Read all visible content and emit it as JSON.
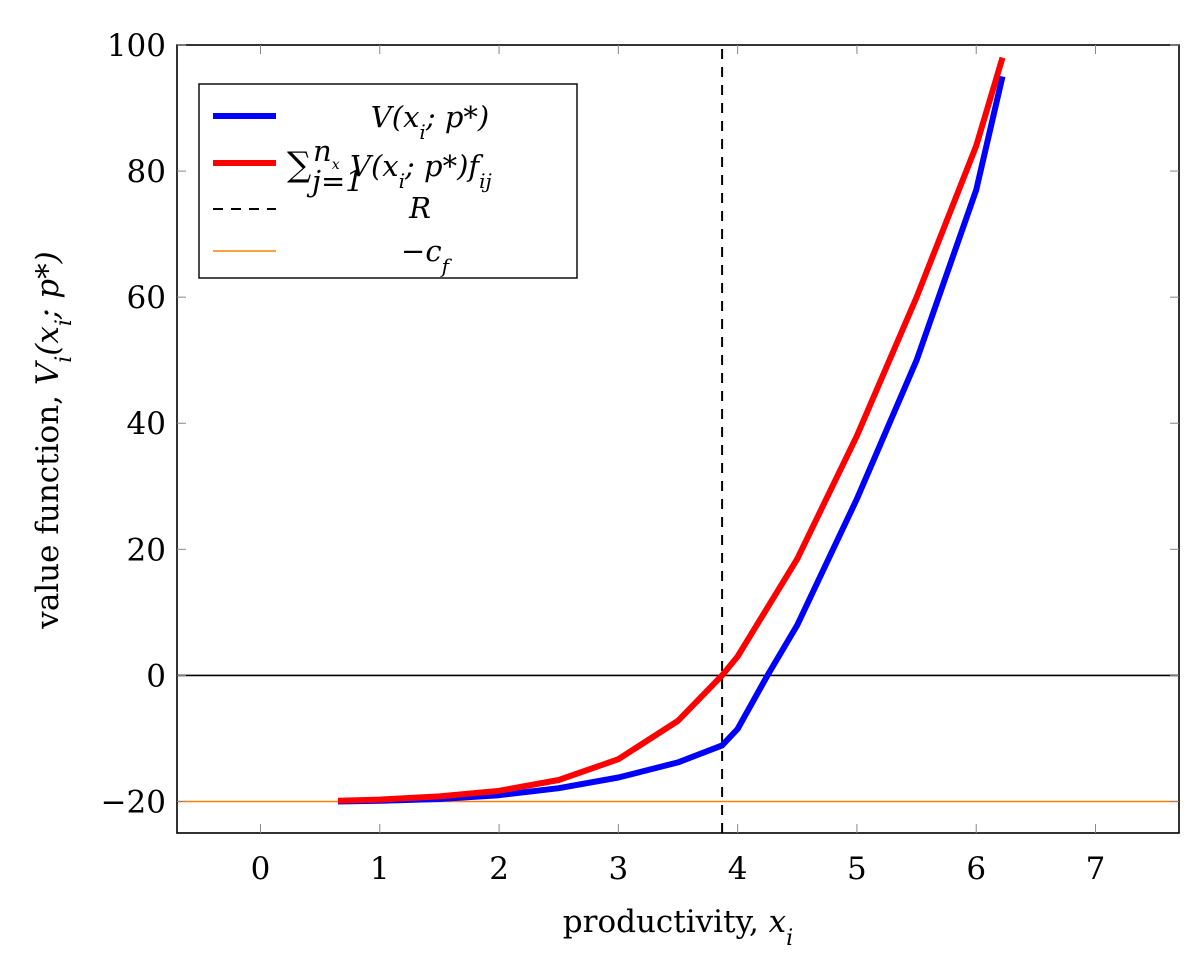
{
  "chart_data": {
    "type": "line",
    "title": "",
    "xlabel_text": "productivity, ",
    "xlabel_var": "x",
    "xlabel_sub": "i",
    "ylabel_text": "value function, ",
    "ylabel_var": "V",
    "ylabel_sub": "i",
    "ylabel_args": "(x",
    "ylabel_args_sub": "i",
    "ylabel_args_tail": "; p*)",
    "xlim": [
      -0.7,
      7.7
    ],
    "ylim": [
      -25,
      100
    ],
    "xticks": [
      0,
      1,
      2,
      3,
      4,
      5,
      6,
      7
    ],
    "xtick_labels": [
      "0",
      "1",
      "2",
      "3",
      "4",
      "5",
      "6",
      "7"
    ],
    "yticks": [
      -20,
      0,
      20,
      40,
      60,
      80,
      100
    ],
    "ytick_labels": [
      "−20",
      "0",
      "20",
      "40",
      "60",
      "80",
      "100"
    ],
    "grid": false,
    "legend_position": "top-left",
    "series": [
      {
        "name": "V(x_i; p*)",
        "color": "#0000ff",
        "style": "solid-thick",
        "x": [
          0.65,
          1.0,
          1.5,
          2.0,
          2.5,
          3.0,
          3.5,
          3.87,
          4.0,
          4.25,
          4.5,
          5.0,
          5.5,
          6.0,
          6.22
        ],
        "y": [
          -20.0,
          -19.9,
          -19.6,
          -19.0,
          -17.9,
          -16.2,
          -13.8,
          -11.1,
          -8.5,
          0.0,
          8.0,
          28.0,
          50.0,
          77.0,
          95.0
        ]
      },
      {
        "name": "Σ V(x_i; p*) f_ij",
        "color": "#ff0000",
        "style": "solid-thick",
        "x": [
          0.65,
          1.0,
          1.5,
          2.0,
          2.5,
          3.0,
          3.5,
          3.87,
          4.0,
          4.5,
          5.0,
          5.5,
          6.0,
          6.22
        ],
        "y": [
          -19.9,
          -19.7,
          -19.2,
          -18.3,
          -16.6,
          -13.3,
          -7.2,
          0.0,
          3.0,
          18.5,
          38.0,
          60.0,
          84.0,
          98.0
        ]
      },
      {
        "name": "R",
        "color": "#000000",
        "style": "dashed-vertical",
        "x": [
          3.87,
          3.87
        ],
        "y": [
          -25,
          100
        ]
      },
      {
        "name": "−c_f",
        "color": "#ff8000",
        "style": "solid-thin-horizontal",
        "x": [
          -0.7,
          7.7
        ],
        "y": [
          -20,
          -20
        ]
      }
    ],
    "zero_line": {
      "y": 0,
      "color": "#000000"
    }
  },
  "legend": {
    "entries": [
      {
        "key": "v",
        "base": "V",
        "args": "(x",
        "sub": "i",
        "tail": "; p*)"
      },
      {
        "key": "sum",
        "sym": "∑",
        "sup": "n",
        "sup_sub": "x",
        "lower": "j=1",
        "base": "V",
        "args": "(x",
        "sub": "i",
        "tail": "; p*)",
        "f": "f",
        "f_sub": "ij"
      },
      {
        "key": "r",
        "base": "R"
      },
      {
        "key": "cf",
        "minus": "−",
        "base": "c",
        "sub": "f"
      }
    ]
  }
}
